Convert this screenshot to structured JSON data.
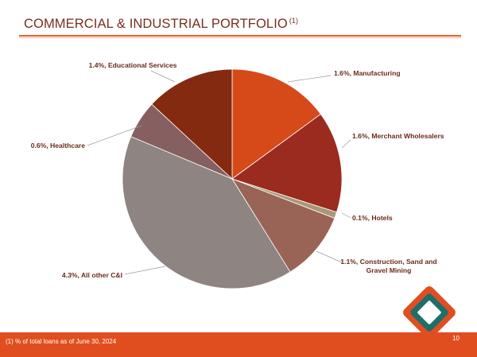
{
  "header": {
    "title": "COMMERCIAL & INDUSTRIAL PORTFOLIO",
    "title_note": "(1)"
  },
  "footer": {
    "footnote": "(1)  % of total loans as of June 30, 2024",
    "page_number": "10"
  },
  "colors": {
    "accent": "#e04e1f",
    "title": "#7a2e1c",
    "logo_orange": "#e04e1f",
    "logo_teal": "#1f6e6a"
  },
  "chart_data": {
    "type": "pie",
    "title": "",
    "start_angle_deg": 0,
    "direction": "clockwise",
    "series": [
      {
        "name": "Manufacturing",
        "value": 1.6,
        "label": "1.6%, Manufacturing",
        "color": "#d64a1a"
      },
      {
        "name": "Merchant Wholesalers",
        "value": 1.6,
        "label": "1.6%, Merchant Wholesalers",
        "color": "#9b2b1e"
      },
      {
        "name": "Hotels",
        "value": 0.1,
        "label": "0.1%, Hotels",
        "color": "#a89878"
      },
      {
        "name": "Construction, Sand and Gravel Mining",
        "value": 1.1,
        "label": "1.1%, Construction, Sand and Gravel Mining",
        "color": "#996455"
      },
      {
        "name": "All other C&I",
        "value": 4.3,
        "label": "4.3%, All other C&I",
        "color": "#8e8482"
      },
      {
        "name": "Healthcare",
        "value": 0.6,
        "label": "0.6%, Healthcare",
        "color": "#866060"
      },
      {
        "name": "Educational Services",
        "value": 1.4,
        "label": "1.4%, Educational Services",
        "color": "#832a10"
      }
    ]
  }
}
